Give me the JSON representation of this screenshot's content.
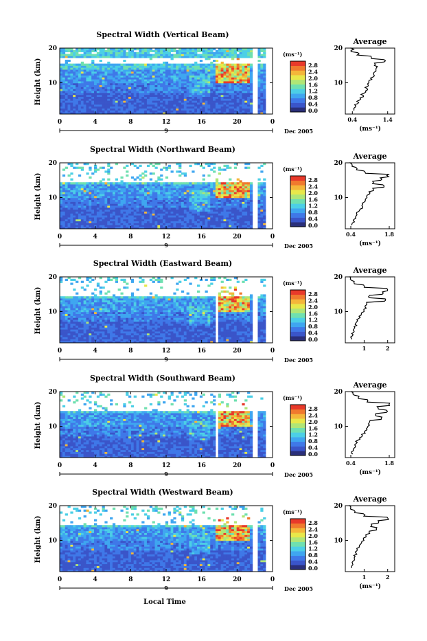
{
  "figure": {
    "x_title": "Local Time",
    "date_label": "Dec 2005",
    "day_label": "9",
    "y_title": "Height (km)",
    "unit_label": "(ms⁻¹)",
    "avg_title": "Average"
  },
  "colorbar": {
    "ticks": [
      "2.8",
      "2.4",
      "2.0",
      "1.6",
      "1.2",
      "0.8",
      "0.4",
      "0.0"
    ],
    "colors": [
      "#2a2f7a",
      "#3a55c9",
      "#3f78e8",
      "#3fa6f0",
      "#4ccfe6",
      "#6fe0b0",
      "#b0e676",
      "#e8e84a",
      "#f4b73a",
      "#f07a2e",
      "#e8392a"
    ]
  },
  "chart_data": [
    {
      "type": "heatmap",
      "title": "Spectral Width (Vertical Beam)",
      "xlabel": "",
      "ylabel": "Height (km)",
      "x_ticks": [
        "0",
        "4",
        "8",
        "12",
        "16",
        "20",
        "0"
      ],
      "y_ticks": [
        "20",
        "10"
      ],
      "xlim": [
        0,
        24
      ],
      "ylim": [
        1,
        20
      ],
      "clim": [
        0.0,
        3.0
      ],
      "gaps": [
        [
          21.8,
          22.3
        ]
      ],
      "notes": "Elevated widths (> 2.4 m/s) near 18-20 h between 11 and 15 km",
      "average_profile": {
        "title": "Average",
        "xlabel": "(ms⁻¹)",
        "x_ticks": [
          "0.4",
          "1.4"
        ],
        "xlim": [
          0.2,
          1.6
        ],
        "height_km": [
          2,
          3,
          4,
          5,
          6,
          7,
          8,
          9,
          10,
          11,
          12,
          13,
          14,
          15,
          16,
          17,
          18,
          19,
          20
        ],
        "width_ms": [
          0.45,
          0.5,
          0.55,
          0.6,
          0.68,
          0.75,
          0.8,
          0.85,
          0.9,
          0.95,
          1.0,
          1.05,
          1.1,
          1.05,
          1.3,
          0.95,
          0.55,
          0.4,
          0.35
        ]
      }
    },
    {
      "type": "heatmap",
      "title": "Spectral Width (Northward Beam)",
      "xlabel": "",
      "ylabel": "Height (km)",
      "x_ticks": [
        "0",
        "4",
        "8",
        "12",
        "16",
        "20",
        "0"
      ],
      "y_ticks": [
        "20",
        "10"
      ],
      "xlim": [
        0,
        24
      ],
      "ylim": [
        1,
        20
      ],
      "clim": [
        0.0,
        3.0
      ],
      "gaps": [
        [
          21.8,
          22.3
        ]
      ],
      "average_profile": {
        "title": "Average",
        "xlabel": "(ms⁻¹)",
        "x_ticks": [
          "0.4",
          "1.8"
        ],
        "xlim": [
          0.2,
          2.0
        ],
        "height_km": [
          2,
          3,
          4,
          5,
          6,
          7,
          8,
          9,
          10,
          11,
          12,
          13,
          14,
          15,
          16,
          17,
          18,
          19,
          20
        ],
        "width_ms": [
          0.45,
          0.5,
          0.55,
          0.62,
          0.7,
          0.8,
          0.85,
          0.95,
          1.0,
          1.1,
          1.2,
          1.6,
          1.2,
          1.5,
          1.75,
          0.9,
          0.6,
          0.45,
          0.4
        ]
      }
    },
    {
      "type": "heatmap",
      "title": "Spectral Width (Eastward Beam)",
      "xlabel": "",
      "ylabel": "Height (km)",
      "x_ticks": [
        "0",
        "4",
        "8",
        "12",
        "16",
        "20",
        "0"
      ],
      "y_ticks": [
        "20",
        "10"
      ],
      "xlim": [
        0,
        24
      ],
      "ylim": [
        1,
        20
      ],
      "clim": [
        0.0,
        3.0
      ],
      "gaps": [
        [
          17.5,
          17.9
        ],
        [
          21.8,
          22.3
        ]
      ],
      "average_profile": {
        "title": "Average",
        "xlabel": "",
        "x_ticks": [
          "1",
          "2"
        ],
        "xlim": [
          0.2,
          2.3
        ],
        "height_km": [
          2,
          3,
          4,
          5,
          6,
          7,
          8,
          9,
          10,
          11,
          12,
          13,
          14,
          15,
          16,
          17,
          18,
          19,
          20
        ],
        "width_ms": [
          0.45,
          0.5,
          0.55,
          0.6,
          0.65,
          0.7,
          0.8,
          0.9,
          1.0,
          1.05,
          1.1,
          1.9,
          1.2,
          1.8,
          2.0,
          1.0,
          0.55,
          0.45,
          0.4
        ]
      }
    },
    {
      "type": "heatmap",
      "title": "Spectral Width (Southward Beam)",
      "xlabel": "",
      "ylabel": "Height (km)",
      "x_ticks": [
        "0",
        "4",
        "8",
        "12",
        "16",
        "20",
        "0"
      ],
      "y_ticks": [
        "20",
        "10"
      ],
      "xlim": [
        0,
        24
      ],
      "ylim": [
        1,
        20
      ],
      "clim": [
        0.0,
        3.0
      ],
      "gaps": [
        [
          17.5,
          17.9
        ],
        [
          21.8,
          22.3
        ]
      ],
      "average_profile": {
        "title": "Average",
        "xlabel": "(ms⁻¹)",
        "x_ticks": [
          "0.4",
          "1.8"
        ],
        "xlim": [
          0.2,
          2.0
        ],
        "height_km": [
          2,
          3,
          4,
          5,
          6,
          7,
          8,
          9,
          10,
          11,
          12,
          13,
          14,
          15,
          16,
          17,
          18,
          19,
          20
        ],
        "width_ms": [
          0.45,
          0.5,
          0.55,
          0.6,
          0.7,
          0.8,
          0.9,
          1.0,
          1.05,
          1.1,
          1.5,
          1.3,
          1.7,
          1.4,
          1.8,
          1.0,
          0.7,
          0.5,
          0.4
        ]
      }
    },
    {
      "type": "heatmap",
      "title": "Spectral Width (Westward Beam)",
      "xlabel": "Local Time",
      "ylabel": "Height (km)",
      "x_ticks": [
        "0",
        "4",
        "8",
        "12",
        "16",
        "20",
        "0"
      ],
      "y_ticks": [
        "20",
        "10"
      ],
      "xlim": [
        0,
        24
      ],
      "ylim": [
        1,
        20
      ],
      "clim": [
        0.0,
        3.0
      ],
      "gaps": [
        [
          21.8,
          22.3
        ]
      ],
      "average_profile": {
        "title": "Average",
        "xlabel": "(ms⁻¹)",
        "x_ticks": [
          "1",
          "2"
        ],
        "xlim": [
          0.2,
          2.3
        ],
        "height_km": [
          2,
          3,
          4,
          5,
          6,
          7,
          8,
          9,
          10,
          11,
          12,
          13,
          14,
          15,
          16,
          17,
          18,
          19,
          20
        ],
        "width_ms": [
          0.45,
          0.5,
          0.55,
          0.6,
          0.65,
          0.72,
          0.8,
          0.9,
          1.0,
          1.1,
          1.2,
          1.5,
          1.3,
          1.6,
          2.0,
          1.0,
          0.6,
          0.45,
          0.4
        ]
      }
    }
  ]
}
